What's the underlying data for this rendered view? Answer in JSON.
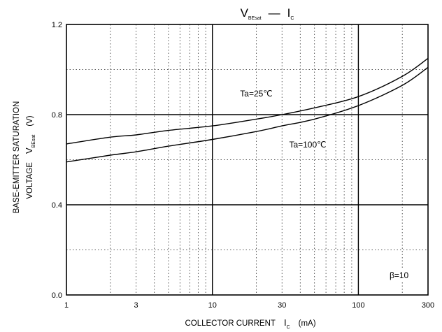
{
  "chart_data": {
    "type": "line",
    "title": {
      "prefix": "V",
      "prefix_sub": "BEsat",
      "dash": "—",
      "suffix": "I",
      "suffix_sub": "C"
    },
    "xlabel": {
      "main": "COLLECTOR CURRENT",
      "var": "I",
      "var_sub": "C",
      "unit": "(mA)"
    },
    "ylabel": {
      "line1": "BASE-EMITTER SATURATION",
      "line2_pre": "VOLTAGE",
      "var": "V",
      "var_sub": "BEsat",
      "unit": "(V)"
    },
    "x_scale": "log",
    "xlim": [
      1,
      300
    ],
    "ylim": [
      0.0,
      1.2
    ],
    "x_ticks": [
      {
        "value": 1,
        "label": "1"
      },
      {
        "value": 3,
        "label": "3"
      },
      {
        "value": 10,
        "label": "10"
      },
      {
        "value": 30,
        "label": "30"
      },
      {
        "value": 100,
        "label": "100"
      },
      {
        "value": 300,
        "label": "300"
      }
    ],
    "y_ticks": [
      {
        "value": 0.0,
        "label": "0.0"
      },
      {
        "value": 0.4,
        "label": "0.4"
      },
      {
        "value": 0.8,
        "label": "0.8"
      },
      {
        "value": 1.2,
        "label": "1.2"
      }
    ],
    "grid": true,
    "series": [
      {
        "name": "Ta=25℃",
        "x": [
          1,
          2,
          3,
          5,
          10,
          20,
          30,
          50,
          100,
          200,
          300
        ],
        "y": [
          0.67,
          0.7,
          0.71,
          0.73,
          0.75,
          0.78,
          0.8,
          0.83,
          0.88,
          0.97,
          1.05
        ]
      },
      {
        "name": "Ta=100℃",
        "x": [
          1,
          2,
          3,
          5,
          10,
          20,
          30,
          50,
          100,
          200,
          300
        ],
        "y": [
          0.59,
          0.62,
          0.635,
          0.66,
          0.69,
          0.725,
          0.75,
          0.78,
          0.84,
          0.93,
          1.01
        ]
      }
    ],
    "annotations": [
      {
        "text": "Ta=25℃",
        "x": 20,
        "y": 0.88
      },
      {
        "text": "Ta=100℃",
        "x": 45,
        "y": 0.655
      },
      {
        "text": "β=10",
        "x": 190,
        "y": 0.075
      }
    ]
  }
}
